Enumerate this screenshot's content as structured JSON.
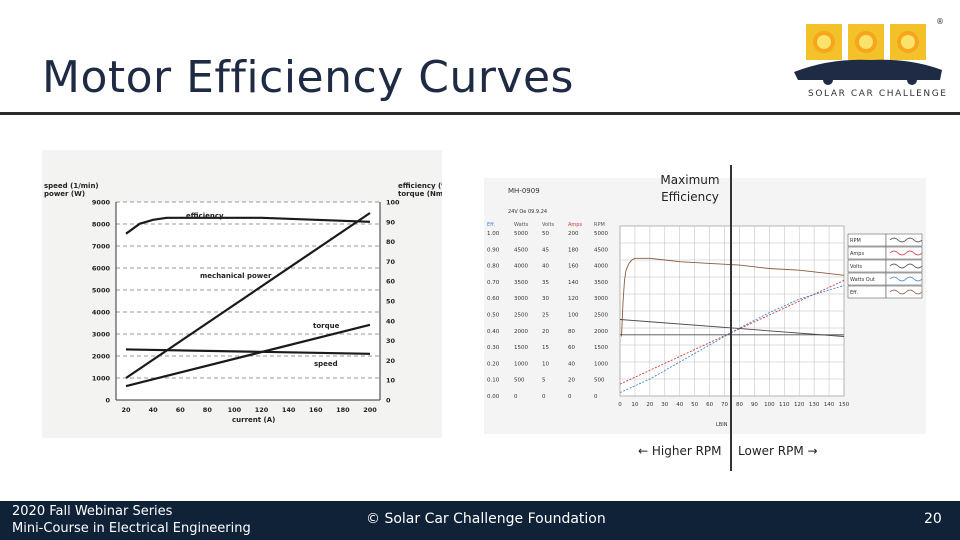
{
  "slide": {
    "title": "Motor Efficiency Curves",
    "logo_text": "SOLAR CAR CHALLENGE",
    "logo_mark": "®"
  },
  "annotations": {
    "max_efficiency_line1": "Maximum",
    "max_efficiency_line2": "Efficiency",
    "higher_rpm": "← Higher RPM",
    "lower_rpm": "Lower RPM →"
  },
  "footer": {
    "line1": "2020 Fall Webinar Series",
    "line2": "Mini-Course in Electrical Engineering",
    "center": "© Solar Car Challenge Foundation",
    "page_number": "20"
  },
  "chart_data": [
    {
      "type": "line",
      "left_axis_label_1": "speed (1/min)",
      "left_axis_label_2": "power (W)",
      "right_axis_label_1": "efficiency (%)",
      "right_axis_label_2": "torque (Nm)",
      "xlabel": "current (A)",
      "x_ticks": [
        20,
        40,
        60,
        80,
        100,
        120,
        140,
        160,
        180,
        200
      ],
      "left_ticks": [
        0,
        1000,
        2000,
        3000,
        4000,
        5000,
        6000,
        7000,
        8000,
        9000
      ],
      "right_ticks": [
        0,
        10,
        20,
        30,
        40,
        50,
        60,
        70,
        80,
        90,
        100
      ],
      "xlim": [
        20,
        200
      ],
      "ylim_left": [
        0,
        9000
      ],
      "ylim_right": [
        0,
        100
      ],
      "series": [
        {
          "name": "efficiency",
          "axis": "right",
          "x": [
            20,
            30,
            40,
            50,
            60,
            80,
            100,
            120,
            140,
            160,
            180,
            200
          ],
          "values": [
            84,
            89,
            91,
            92,
            92,
            92,
            92,
            92,
            91.5,
            91,
            90.5,
            90
          ]
        },
        {
          "name": "mechanical power",
          "axis": "left",
          "x": [
            20,
            200
          ],
          "values": [
            1000,
            8500
          ]
        },
        {
          "name": "torque",
          "axis": "right",
          "x": [
            20,
            200
          ],
          "values": [
            7,
            38
          ]
        },
        {
          "name": "speed",
          "axis": "left",
          "x": [
            20,
            200
          ],
          "values": [
            2300,
            2100
          ]
        }
      ]
    },
    {
      "type": "line",
      "header": "MH-0909",
      "subheader": "24V Oe 09.9.24",
      "column_headers": [
        "Eff.",
        "Watts",
        "Volts",
        "Amps",
        "RPM"
      ],
      "columns": {
        "Eff.": [
          "1.00",
          "0.90",
          "0.80",
          "0.70",
          "0.60",
          "0.50",
          "0.40",
          "0.30",
          "0.20",
          "0.10",
          "0.00"
        ],
        "Watts": [
          "5000",
          "4500",
          "4000",
          "3500",
          "3000",
          "2500",
          "2000",
          "1500",
          "1000",
          "500",
          "0"
        ],
        "Volts": [
          "50",
          "45",
          "40",
          "35",
          "30",
          "25",
          "20",
          "15",
          "10",
          "5",
          "0"
        ],
        "Amps": [
          "200",
          "180",
          "160",
          "140",
          "120",
          "100",
          "80",
          "60",
          "40",
          "20",
          "0"
        ],
        "RPM": [
          "5000",
          "4500",
          "4000",
          "3500",
          "3000",
          "2500",
          "2000",
          "1500",
          "1000",
          "500",
          "0"
        ]
      },
      "xlabel": "LBIN",
      "x_ticks": [
        0,
        10,
        20,
        30,
        40,
        50,
        60,
        70,
        80,
        90,
        100,
        110,
        120,
        130,
        140,
        150
      ],
      "xlim": [
        0,
        150
      ],
      "ylim": [
        0,
        1
      ],
      "legend": [
        "RPM",
        "Amps",
        "Volts",
        "Watts Out",
        "Eff."
      ],
      "legend_colors": {
        "RPM": "#4a4a4a",
        "Amps": "#d23a3a",
        "Volts": "#4a4a4a",
        "Watts Out": "#3f86d8",
        "Eff.": "#8a5a3a"
      },
      "legend_position": "top-right",
      "series": [
        {
          "name": "Eff.",
          "x": [
            1,
            2,
            3,
            4,
            6,
            8,
            10,
            15,
            20,
            30,
            40,
            60,
            80,
            100,
            120,
            140,
            150
          ],
          "values": [
            0.35,
            0.55,
            0.68,
            0.74,
            0.78,
            0.8,
            0.81,
            0.81,
            0.81,
            0.8,
            0.79,
            0.78,
            0.77,
            0.75,
            0.74,
            0.72,
            0.71
          ]
        },
        {
          "name": "RPM",
          "x": [
            0,
            150
          ],
          "values": [
            0.45,
            0.35
          ]
        },
        {
          "name": "Amps",
          "x": [
            0,
            150
          ],
          "values": [
            0.07,
            0.68
          ]
        },
        {
          "name": "Watts Out",
          "x": [
            0,
            20,
            40,
            60,
            80,
            100,
            120,
            150
          ],
          "values": [
            0.02,
            0.1,
            0.2,
            0.3,
            0.4,
            0.49,
            0.57,
            0.65
          ]
        },
        {
          "name": "Volts",
          "x": [
            0,
            150
          ],
          "values": [
            0.36,
            0.36
          ]
        }
      ]
    }
  ]
}
